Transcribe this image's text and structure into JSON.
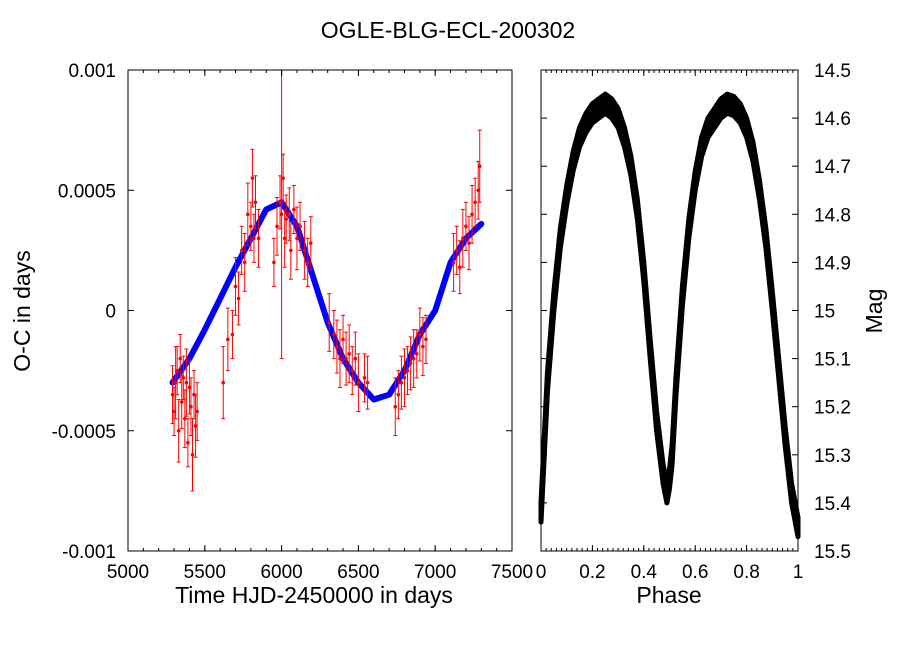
{
  "title": "OGLE-BLG-ECL-200302",
  "chart_data": [
    {
      "id": "oc",
      "type": "scatter",
      "xlabel": "Time HJD-2450000 in days",
      "ylabel": "O-C in days",
      "xlim": [
        5000,
        7500
      ],
      "ylim": [
        -0.001,
        0.001
      ],
      "xticks": [
        5000,
        5500,
        6000,
        6500,
        7000,
        7500
      ],
      "yticks": [
        -0.001,
        -0.0005,
        0,
        0.0005,
        0.001
      ],
      "ytick_labels": [
        "-0.001",
        "-0.0005",
        "0",
        "0.0005",
        "0.001"
      ],
      "series": [
        {
          "name": "observed O-C",
          "kind": "points-with-errorbars",
          "color": "#ff0000",
          "points": [
            [
              5290,
              -0.00035,
              0.00012
            ],
            [
              5300,
              -0.00042,
              0.0001
            ],
            [
              5310,
              -0.0003,
              0.00015
            ],
            [
              5320,
              -0.00025,
              0.0001
            ],
            [
              5330,
              -0.0005,
              0.00013
            ],
            [
              5340,
              -0.0002,
              0.0001
            ],
            [
              5350,
              -0.00038,
              0.00011
            ],
            [
              5360,
              -0.00028,
              9e-05
            ],
            [
              5370,
              -0.00045,
              0.00012
            ],
            [
              5380,
              -0.0003,
              0.00014
            ],
            [
              5390,
              -0.00055,
              0.0001
            ],
            [
              5400,
              -0.00032,
              0.00011
            ],
            [
              5410,
              -0.0004,
              0.00012
            ],
            [
              5420,
              -0.0006,
              0.00015
            ],
            [
              5430,
              -0.00035,
              0.0001
            ],
            [
              5440,
              -0.00048,
              0.00013
            ],
            [
              5450,
              -0.00042,
              0.00012
            ],
            [
              5620,
              -0.0003,
              0.00015
            ],
            [
              5650,
              -0.00012,
              0.00013
            ],
            [
              5680,
              -0.0001,
              0.0001
            ],
            [
              5700,
              0.0001,
              0.00012
            ],
            [
              5720,
              5e-05,
              0.00011
            ],
            [
              5740,
              0.00025,
              0.0001
            ],
            [
              5760,
              0.0002,
              0.00012
            ],
            [
              5780,
              0.0004,
              0.00013
            ],
            [
              5800,
              0.00035,
              0.0001
            ],
            [
              5810,
              0.00055,
              0.00012
            ],
            [
              5820,
              0.0003,
              0.0001
            ],
            [
              5830,
              0.00045,
              0.00011
            ],
            [
              5850,
              0.0003,
              0.00012
            ],
            [
              5950,
              0.0002,
              0.0001
            ],
            [
              5970,
              0.00035,
              0.00012
            ],
            [
              5990,
              0.00045,
              0.00011
            ],
            [
              6000,
              0.0004,
              0.0006
            ],
            [
              6010,
              0.00055,
              0.0001
            ],
            [
              6020,
              0.0003,
              0.00012
            ],
            [
              6030,
              0.00038,
              0.0001
            ],
            [
              6050,
              0.0004,
              0.00011
            ],
            [
              6060,
              0.00025,
              0.00012
            ],
            [
              6080,
              0.00042,
              0.0001
            ],
            [
              6100,
              0.0003,
              0.00013
            ],
            [
              6120,
              0.00035,
              0.0001
            ],
            [
              6150,
              0.00025,
              0.00012
            ],
            [
              6170,
              0.0002,
              0.0001
            ],
            [
              6190,
              0.00028,
              0.00011
            ],
            [
              6310,
              -5e-05,
              0.00012
            ],
            [
              6340,
              -0.0001,
              0.0001
            ],
            [
              6360,
              -0.00015,
              0.00011
            ],
            [
              6380,
              -0.0002,
              0.00012
            ],
            [
              6400,
              -0.00012,
              0.0001
            ],
            [
              6420,
              -0.0002,
              0.00011
            ],
            [
              6440,
              -0.00018,
              0.00012
            ],
            [
              6460,
              -0.00025,
              0.0001
            ],
            [
              6480,
              -0.0002,
              0.00011
            ],
            [
              6500,
              -0.0003,
              0.00012
            ],
            [
              6540,
              -0.00028,
              0.0001
            ],
            [
              6560,
              -0.0003,
              0.00011
            ],
            [
              6740,
              -0.0004,
              0.00012
            ],
            [
              6760,
              -0.00035,
              0.0001
            ],
            [
              6780,
              -0.0003,
              0.00011
            ],
            [
              6800,
              -0.00028,
              0.00012
            ],
            [
              6820,
              -0.00025,
              0.0001
            ],
            [
              6840,
              -0.00022,
              0.00011
            ],
            [
              6860,
              -0.0002,
              0.00012
            ],
            [
              6880,
              -0.00018,
              0.0001
            ],
            [
              6900,
              -0.0001,
              0.00011
            ],
            [
              6920,
              -0.00015,
              0.00012
            ],
            [
              6940,
              -0.00012,
              0.0001
            ],
            [
              7120,
              0.0002,
              0.00012
            ],
            [
              7140,
              0.00025,
              0.0001
            ],
            [
              7160,
              0.00018,
              0.00011
            ],
            [
              7180,
              0.0003,
              0.00012
            ],
            [
              7200,
              0.00035,
              0.0001
            ],
            [
              7220,
              0.00028,
              0.00011
            ],
            [
              7240,
              0.0004,
              0.00012
            ],
            [
              7260,
              0.00045,
              0.0001
            ],
            [
              7280,
              0.0005,
              0.00012
            ],
            [
              7290,
              0.0006,
              0.00015
            ]
          ]
        },
        {
          "name": "model",
          "kind": "curve",
          "color": "#0000ff",
          "x": [
            5290,
            5400,
            5500,
            5600,
            5700,
            5800,
            5900,
            6000,
            6100,
            6200,
            6300,
            6400,
            6500,
            6600,
            6700,
            6800,
            6900,
            7000,
            7100,
            7200,
            7300
          ],
          "y": [
            -0.0003,
            -0.0002,
            -8e-05,
            5e-05,
            0.00018,
            0.0003,
            0.00042,
            0.00045,
            0.00035,
            0.00015,
            -5e-05,
            -0.0002,
            -0.0003,
            -0.00037,
            -0.00035,
            -0.00025,
            -0.0001,
            0.0,
            0.0002,
            0.0003,
            0.00036
          ]
        }
      ]
    },
    {
      "id": "lc",
      "type": "scatter",
      "xlabel": "Phase",
      "ylabel": "Mag",
      "xlim": [
        0,
        1
      ],
      "ylim": [
        15.5,
        14.5
      ],
      "xticks": [
        0,
        0.2,
        0.4,
        0.6,
        0.8,
        1
      ],
      "xtick_labels": [
        "0",
        "0.2",
        "0.4",
        "0.6",
        "0.8",
        "1"
      ],
      "yticks": [
        14.5,
        14.6,
        14.7,
        14.8,
        14.9,
        15,
        15.1,
        15.2,
        15.3,
        15.4,
        15.5
      ],
      "ytick_labels": [
        "14.5",
        "14.6",
        "14.7",
        "14.8",
        "14.9",
        "15",
        "15.1",
        "15.2",
        "15.3",
        "15.4",
        "15.5"
      ],
      "series": [
        {
          "name": "light curve",
          "kind": "band",
          "color": "#000000",
          "phase": [
            0,
            0.025,
            0.05,
            0.075,
            0.1,
            0.125,
            0.15,
            0.175,
            0.2,
            0.225,
            0.25,
            0.275,
            0.3,
            0.325,
            0.35,
            0.375,
            0.4,
            0.425,
            0.45,
            0.475,
            0.49,
            0.5,
            0.51,
            0.525,
            0.55,
            0.575,
            0.6,
            0.625,
            0.65,
            0.675,
            0.7,
            0.725,
            0.75,
            0.775,
            0.8,
            0.825,
            0.85,
            0.875,
            0.9,
            0.925,
            0.95,
            0.975,
            1.0
          ],
          "mag": [
            15.42,
            15.15,
            14.98,
            14.85,
            14.76,
            14.69,
            14.64,
            14.61,
            14.59,
            14.58,
            14.57,
            14.58,
            14.6,
            14.64,
            14.7,
            14.79,
            14.92,
            15.08,
            15.23,
            15.34,
            15.38,
            15.35,
            15.3,
            15.16,
            14.97,
            14.83,
            14.73,
            14.66,
            14.62,
            14.6,
            14.58,
            14.57,
            14.575,
            14.59,
            14.62,
            14.67,
            14.75,
            14.85,
            14.98,
            15.12,
            15.26,
            15.38,
            15.45
          ],
          "scatter_mag": 0.04
        }
      ]
    }
  ]
}
